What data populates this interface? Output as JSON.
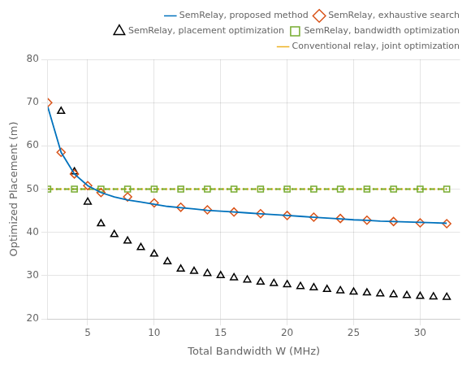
{
  "chart_data": {
    "type": "line",
    "title": "",
    "x_label": "Total Bandwidth W (MHz)",
    "y_label": "Optimized Placement (m)",
    "xlim": [
      2,
      33
    ],
    "ylim": [
      20,
      80
    ],
    "xticks": [
      5,
      10,
      15,
      20,
      25,
      30
    ],
    "yticks": [
      20,
      30,
      40,
      50,
      60,
      70,
      80
    ],
    "grid": true,
    "legend": "upper right",
    "series": [
      {
        "name": "SemRelay, proposed method",
        "color": "#0072BD",
        "marker": "none",
        "line_style": "solid",
        "x": [
          2,
          3,
          4,
          5,
          6,
          7,
          8,
          9,
          10,
          11,
          12,
          13,
          14,
          15,
          16,
          17,
          18,
          19,
          20,
          21,
          22,
          23,
          24,
          25,
          26,
          27,
          28,
          29,
          30,
          31,
          32
        ],
        "values": [
          69.0,
          58.5,
          53.5,
          50.8,
          49.2,
          48.2,
          47.5,
          47.0,
          46.5,
          46.0,
          45.7,
          45.4,
          45.1,
          44.9,
          44.7,
          44.5,
          44.3,
          44.1,
          43.9,
          43.7,
          43.5,
          43.3,
          43.1,
          42.9,
          42.8,
          42.6,
          42.5,
          42.4,
          42.3,
          42.2,
          42.1
        ]
      },
      {
        "name": "SemRelay, exhaustive search",
        "color": "#D95319",
        "marker": "diamond",
        "line_style": "none",
        "x": [
          2,
          3,
          4,
          5,
          6,
          8,
          10,
          12,
          14,
          16,
          18,
          20,
          22,
          24,
          26,
          28,
          30,
          32
        ],
        "values": [
          70.0,
          58.5,
          53.5,
          50.8,
          49.2,
          48.2,
          46.8,
          45.8,
          45.2,
          44.7,
          44.3,
          43.9,
          43.5,
          43.2,
          42.8,
          42.5,
          42.2,
          42.0
        ]
      },
      {
        "name": "SemRelay, placement optimization",
        "color": "#000000",
        "marker": "triangle",
        "line_style": "none",
        "x": [
          3,
          4,
          5,
          6,
          7,
          8,
          9,
          10,
          11,
          12,
          13,
          14,
          15,
          16,
          17,
          18,
          19,
          20,
          21,
          22,
          23,
          24,
          25,
          26,
          27,
          28,
          29,
          30,
          31,
          32
        ],
        "values": [
          68.0,
          54.0,
          47.0,
          42.0,
          39.5,
          38.0,
          36.5,
          35.0,
          33.2,
          31.5,
          31.0,
          30.5,
          30.0,
          29.5,
          29.0,
          28.5,
          28.2,
          27.9,
          27.5,
          27.2,
          26.8,
          26.5,
          26.2,
          26.0,
          25.8,
          25.6,
          25.4,
          25.2,
          25.1,
          25.0
        ]
      },
      {
        "name": "SemRelay, bandwidth optimization",
        "color": "#77AC30",
        "marker": "square",
        "line_style": "dashed",
        "x": [
          2,
          4,
          6,
          8,
          10,
          12,
          14,
          16,
          18,
          20,
          22,
          24,
          26,
          28,
          30,
          32
        ],
        "values": [
          50,
          50,
          50,
          50,
          50,
          50,
          50,
          50,
          50,
          50,
          50,
          50,
          50,
          50,
          50,
          50
        ]
      },
      {
        "name": "Conventional relay, joint optimization",
        "color": "#EDB120",
        "marker": "none",
        "line_style": "dotted",
        "x": [
          2,
          32
        ],
        "values": [
          50,
          50
        ]
      }
    ]
  }
}
